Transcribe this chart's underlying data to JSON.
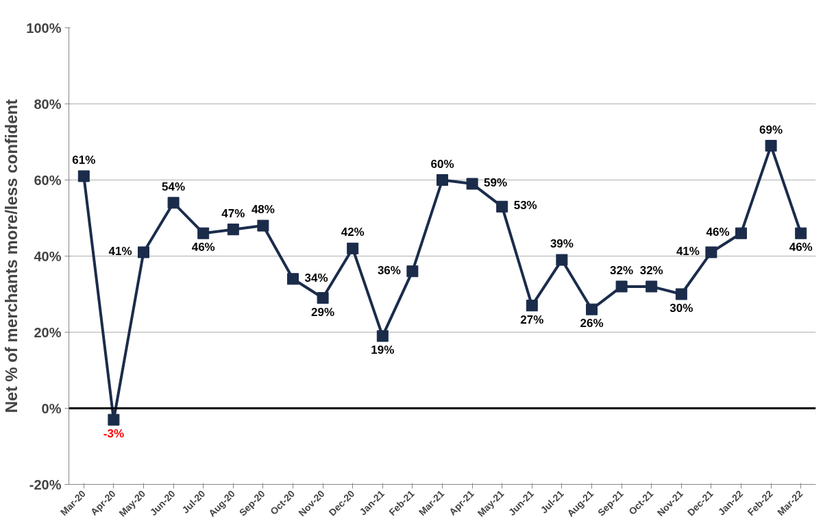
{
  "chart_data": {
    "type": "line",
    "ylabel": "Net % of merchants more/less confident",
    "categories": [
      "Mar-20",
      "Apr-20",
      "May-20",
      "Jun-20",
      "Jul-20",
      "Aug-20",
      "Sep-20",
      "Oct-20",
      "Nov-20",
      "Dec-20",
      "Jan-21",
      "Feb-21",
      "Mar-21",
      "Apr-21",
      "May-21",
      "Jun-21",
      "Jul-21",
      "Aug-21",
      "Sep-21",
      "Oct-21",
      "Nov-21",
      "Dec-21",
      "Jan-22",
      "Feb-22",
      "Mar-22"
    ],
    "values": [
      61,
      -3,
      41,
      54,
      46,
      47,
      48,
      34,
      29,
      42,
      19,
      36,
      60,
      59,
      53,
      27,
      39,
      26,
      32,
      32,
      30,
      41,
      46,
      69,
      46
    ],
    "value_labels": [
      "61%",
      "-3%",
      "41%",
      "54%",
      "46%",
      "47%",
      "48%",
      "34%",
      "29%",
      "42%",
      "19%",
      "36%",
      "60%",
      "59%",
      "53%",
      "27%",
      "39%",
      "26%",
      "32%",
      "32%",
      "30%",
      "41%",
      "46%",
      "69%",
      "46%"
    ],
    "color": "#1b2c4b",
    "marker": "square",
    "line_style": "solid",
    "ylim": [
      -20,
      100
    ],
    "yticks": [
      {
        "value": -20,
        "label": "-20%"
      },
      {
        "value": 0,
        "label": "0%"
      },
      {
        "value": 20,
        "label": "20%"
      },
      {
        "value": 40,
        "label": "40%"
      },
      {
        "value": 60,
        "label": "60%"
      },
      {
        "value": 80,
        "label": "80%"
      },
      {
        "value": 100,
        "label": "100%"
      }
    ],
    "grid": "y",
    "ref_lines": [
      {
        "axis": "y",
        "value": 0,
        "color": "#000000"
      }
    ]
  }
}
